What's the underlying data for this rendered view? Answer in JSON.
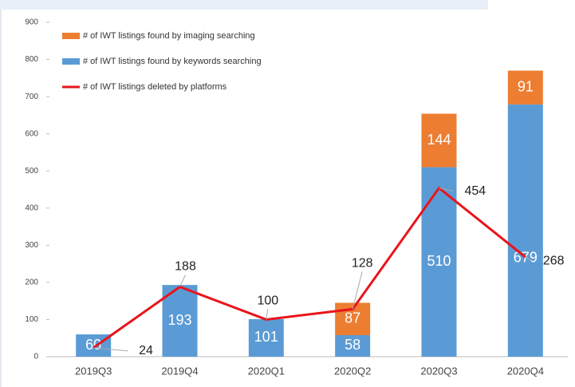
{
  "chart_data": {
    "type": "bar",
    "categories": [
      "2019Q3",
      "2019Q4",
      "2020Q1",
      "2020Q2",
      "2020Q3",
      "2020Q4"
    ],
    "series": [
      {
        "name": "# of IWT listings found by imaging searching",
        "color": "#ed7d31",
        "values": [
          null,
          null,
          null,
          87,
          144,
          91
        ],
        "stack": "a"
      },
      {
        "name": "# of IWT listings found by keywords searching",
        "color": "#5b9bd5",
        "values": [
          60,
          193,
          101,
          58,
          510,
          679
        ],
        "stack": "a"
      },
      {
        "name": "# of IWT listings deleted by platforms",
        "color": "#e8151b",
        "values": [
          24,
          188,
          100,
          128,
          454,
          268
        ],
        "type": "line"
      }
    ],
    "ylim": [
      0,
      900
    ],
    "yticks": [
      0,
      100,
      200,
      300,
      400,
      500,
      600,
      700,
      800,
      900
    ],
    "grid": false
  }
}
